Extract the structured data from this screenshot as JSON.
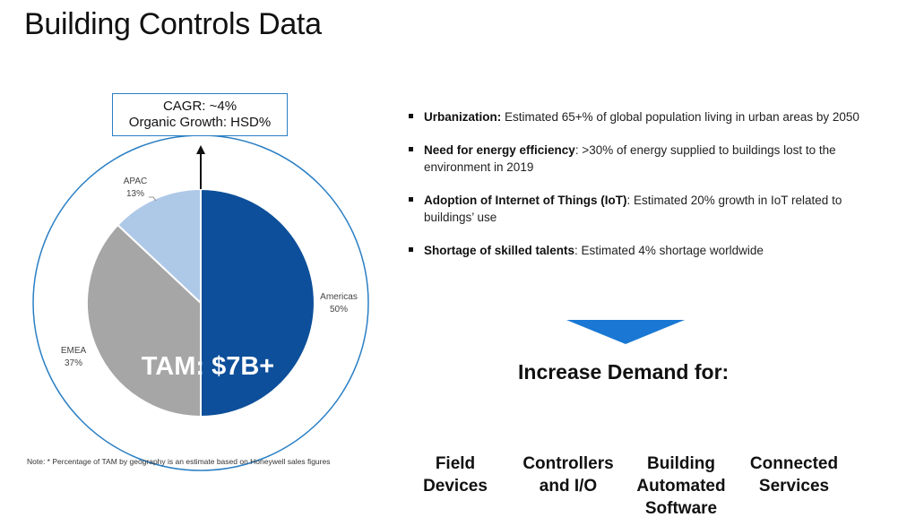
{
  "title": "Building Controls Data",
  "cagr": {
    "line1": "CAGR: ~4%",
    "line2": "Organic Growth: HSD%"
  },
  "tam_label": "TAM: $7B+",
  "chart_data": {
    "type": "pie",
    "title": "",
    "slices": [
      {
        "label": "Americas",
        "value": 50,
        "value_label": "50%",
        "color": "#0d4f9a"
      },
      {
        "label": "EMEA",
        "value": 37,
        "value_label": "37%",
        "color": "#a6a6a6"
      },
      {
        "label": "APAC",
        "value": 13,
        "value_label": "13%",
        "color": "#aec8e8"
      }
    ],
    "start": "12 o'clock, clockwise",
    "outer_ring_color": "#2a7fc4"
  },
  "bullets": [
    {
      "bold": "Urbanization:",
      "text": " Estimated 65+% of global population living in urban areas by 2050"
    },
    {
      "bold": "Need for energy efficiency",
      "text": ": >30% of energy supplied to buildings lost to the environment in 2019"
    },
    {
      "bold": "Adoption of Internet of Things (IoT)",
      "text": ": Estimated 20% growth in IoT related to buildings’ use"
    },
    {
      "bold": "Shortage of skilled talents",
      "text": ": Estimated 4% shortage worldwide"
    }
  ],
  "arrow_color": "#1a78d4",
  "demand": {
    "title": "Increase Demand for:",
    "items": [
      {
        "line1": "Field",
        "line2": "Devices",
        "line3": ""
      },
      {
        "line1": "Controllers",
        "line2": "and I/O",
        "line3": ""
      },
      {
        "line1": "Building",
        "line2": "Automated",
        "line3": "Software"
      },
      {
        "line1": "Connected",
        "line2": "Services",
        "line3": ""
      }
    ]
  },
  "note": "Note: * Percentage of TAM by geography is an estimate based on Honeywell sales figures"
}
